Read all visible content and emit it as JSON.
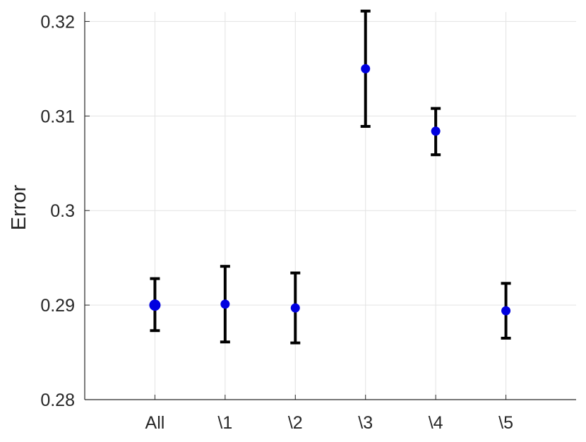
{
  "chart_data": {
    "type": "scatter",
    "title": "",
    "xlabel": "",
    "ylabel": "Error",
    "categories": [
      "All",
      "\\1",
      "\\2",
      "\\3",
      "\\4",
      "\\5"
    ],
    "ylim": [
      0.28,
      0.321
    ],
    "xlim": [
      0,
      7
    ],
    "yticks": [
      0.28,
      0.29,
      0.3,
      0.31,
      0.32
    ],
    "ytick_labels": [
      "0.28",
      "0.29",
      "0.3",
      "0.31",
      "0.32"
    ],
    "grid": true,
    "series": [
      {
        "values": [
          0.29,
          0.2901,
          0.2897,
          0.315,
          0.3084,
          0.2894
        ],
        "error_lower": [
          0.2873,
          0.2861,
          0.286,
          0.3089,
          0.3059,
          0.2865
        ],
        "error_upper": [
          0.2928,
          0.2941,
          0.2934,
          0.3211,
          0.3108,
          0.2923
        ],
        "color": "#0000e0",
        "error_color": "#000000"
      }
    ]
  }
}
